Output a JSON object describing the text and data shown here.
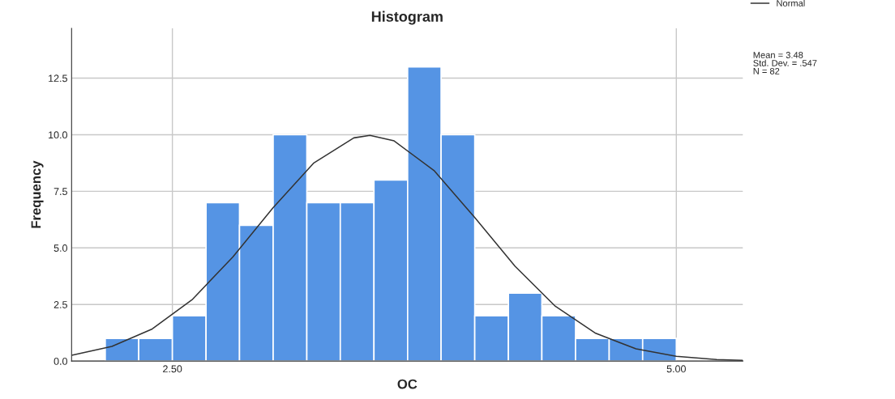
{
  "chart_data": {
    "type": "histogram",
    "title": "Histogram",
    "xlabel": "OC",
    "ylabel": "Frequency",
    "bins": [
      2.167,
      2.333,
      2.5,
      2.667,
      2.833,
      3.0,
      3.167,
      3.333,
      3.5,
      3.667,
      3.833,
      4.0,
      4.167,
      4.333,
      4.5,
      4.667,
      4.833,
      5.0
    ],
    "values": [
      1,
      1,
      2,
      7,
      6,
      10,
      7,
      7,
      8,
      13,
      10,
      2,
      3,
      2,
      1,
      1,
      1
    ],
    "color": "#5594e4",
    "series": [
      {
        "name": "Normal",
        "type": "line",
        "color": "#333333",
        "x": [
          2.0,
          2.2,
          2.4,
          2.6,
          2.8,
          3.0,
          3.2,
          3.4,
          3.48,
          3.6,
          3.8,
          4.0,
          4.2,
          4.4,
          4.6,
          4.8,
          5.0,
          5.2,
          5.33
        ],
        "values": [
          0.26,
          0.65,
          1.42,
          2.73,
          4.6,
          6.78,
          8.74,
          9.86,
          9.97,
          9.73,
          8.4,
          6.34,
          4.19,
          2.42,
          1.23,
          0.54,
          0.21,
          0.07,
          0.03
        ]
      }
    ],
    "xlim": [
      2.0,
      5.33
    ],
    "ylim": [
      0,
      14.7
    ],
    "xticks": [
      {
        "value": 2.5,
        "label": "2.50"
      },
      {
        "value": 5,
        "label": "5.00"
      }
    ],
    "yticks": [
      {
        "value": 0,
        "label": "0.0"
      },
      2.5,
      {
        "value": 5,
        "label": "5.0"
      },
      7.5,
      {
        "value": 10,
        "label": "10.0"
      },
      12.5
    ],
    "grid": true,
    "legend": "top right",
    "annotations": [
      "Mean = 3.48\nStd. Dev. = .547\nN = 82"
    ]
  }
}
